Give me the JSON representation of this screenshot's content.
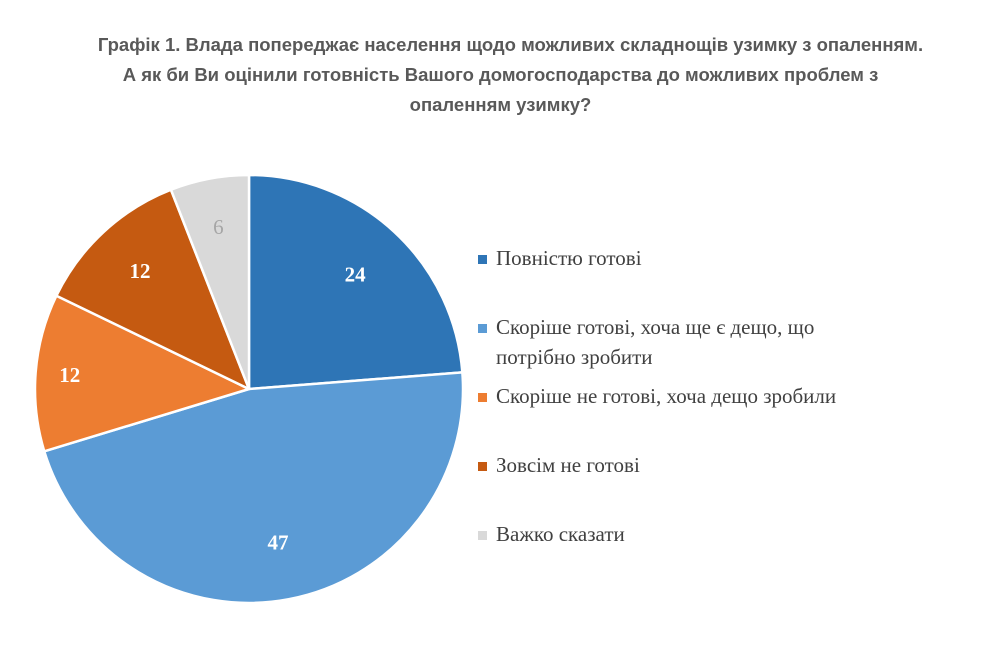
{
  "chart_data": {
    "type": "pie",
    "title_lines": [
      "Графік 1. Влада попереджає населення щодо можливих складнощів узимку з опаленням.",
      "А як би Ви оцінили готовність Вашого домогосподарства до можливих проблем з",
      "опаленням узимку?"
    ],
    "slices": [
      {
        "label": "Повністю готові",
        "label_lines": [
          "Повністю готові"
        ],
        "value": 24,
        "color": "#2e75b6",
        "label_color": "#ffffff"
      },
      {
        "label": "Скоріше готові, хоча ще є дещо, що потрібно зробити",
        "label_lines": [
          "Скоріше готові, хоча ще є дещо, що",
          "потрібно зробити"
        ],
        "value": 47,
        "color": "#5b9bd5",
        "label_color": "#ffffff"
      },
      {
        "label": "Скоріше не готові, хоча дещо зробили",
        "label_lines": [
          "Скоріше не готові, хоча дещо зробили"
        ],
        "value": 12,
        "color": "#ed7d31",
        "label_color": "#ffffff"
      },
      {
        "label": "Зовсім не готові",
        "label_lines": [
          "Зовсім не готові"
        ],
        "value": 12,
        "color": "#c55a11",
        "label_color": "#ffffff"
      },
      {
        "label": "Важко сказати",
        "label_lines": [
          "Важко сказати"
        ],
        "value": 6,
        "color": "#d9d9d9",
        "label_color": "#a6a6a6"
      }
    ],
    "legend_placement": "right"
  }
}
